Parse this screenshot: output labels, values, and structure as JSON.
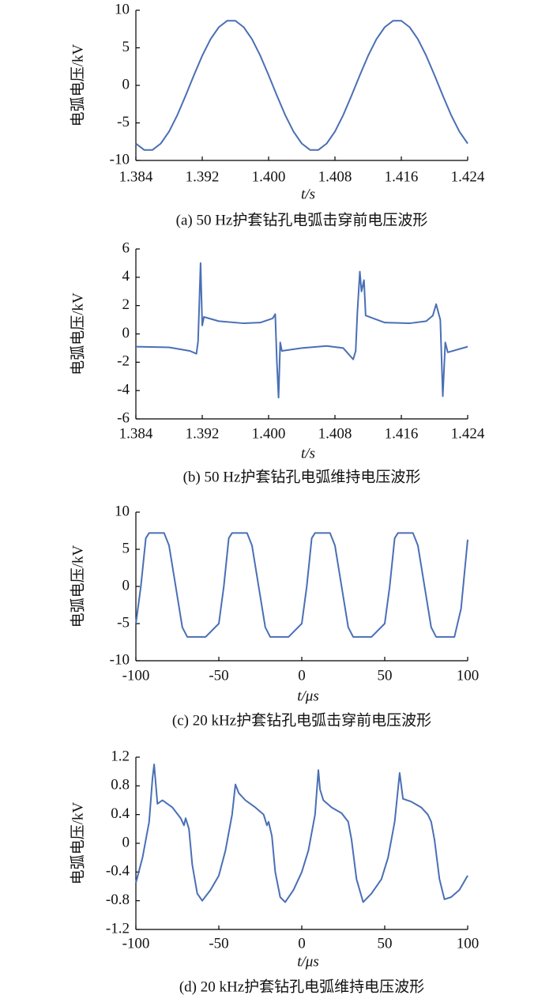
{
  "chart_data": [
    {
      "type": "line",
      "ylabel": "电弧电压/kV",
      "xlabel": "t/s",
      "caption": "(a)  50 Hz护套钻孔电弧击穿前电压波形",
      "color": "#4a6fb5",
      "xlim": [
        1.384,
        1.424
      ],
      "xticks": [
        1.384,
        1.392,
        {
          "value": 1.4,
          "label": "1.400"
        },
        1.408,
        1.416,
        1.424
      ],
      "ylim": [
        -10,
        10
      ],
      "yticks": [
        -10,
        -5,
        0,
        5,
        10
      ],
      "x": [
        1.384,
        1.385,
        1.386,
        1.387,
        1.388,
        1.389,
        1.39,
        1.391,
        1.392,
        1.393,
        1.394,
        1.395,
        1.396,
        1.397,
        1.398,
        1.399,
        1.4,
        1.401,
        1.402,
        1.403,
        1.404,
        1.405,
        1.406,
        1.407,
        1.408,
        1.409,
        1.41,
        1.411,
        1.412,
        1.413,
        1.414,
        1.415,
        1.416,
        1.417,
        1.418,
        1.419,
        1.42,
        1.421,
        1.422,
        1.423,
        1.424
      ],
      "values": [
        -7.75,
        -8.6,
        -8.6,
        -7.75,
        -6.15,
        -3.95,
        -1.36,
        1.36,
        3.95,
        6.15,
        7.75,
        8.6,
        8.6,
        7.75,
        6.15,
        3.95,
        1.36,
        -1.36,
        -3.95,
        -6.15,
        -7.75,
        -8.6,
        -8.6,
        -7.75,
        -6.15,
        -3.95,
        -1.36,
        1.36,
        3.95,
        6.15,
        7.75,
        8.6,
        8.6,
        7.75,
        6.15,
        3.95,
        1.36,
        -1.36,
        -3.95,
        -6.15,
        -7.75
      ]
    },
    {
      "type": "line",
      "ylabel": "电弧电压/kV",
      "xlabel": "t/s",
      "caption": "(b)  50 Hz护套钻孔电弧维持电压波形",
      "color": "#4a6fb5",
      "xlim": [
        1.384,
        1.424
      ],
      "xticks": [
        1.384,
        1.392,
        {
          "value": 1.4,
          "label": "1.400"
        },
        1.408,
        1.416,
        1.424
      ],
      "ylim": [
        -6,
        6
      ],
      "yticks": [
        -6,
        -4,
        -2,
        0,
        2,
        4,
        6
      ],
      "x": [
        1.384,
        1.388,
        1.3905,
        1.3913,
        1.3915,
        1.3918,
        1.392,
        1.3922,
        1.394,
        1.397,
        1.399,
        1.4005,
        1.4008,
        1.401,
        1.4012,
        1.4014,
        1.4016,
        1.404,
        1.407,
        1.409,
        1.4102,
        1.4105,
        1.4107,
        1.411,
        1.4112,
        1.4115,
        1.4117,
        1.414,
        1.417,
        1.419,
        1.4198,
        1.4202,
        1.4207,
        1.421,
        1.4213,
        1.4216,
        1.424
      ],
      "values": [
        -0.9,
        -0.95,
        -1.2,
        -1.4,
        -0.5,
        5.0,
        0.6,
        1.2,
        0.9,
        0.75,
        0.8,
        1.1,
        1.4,
        -2,
        -4.5,
        -0.6,
        -1.2,
        -1.0,
        -0.85,
        -1.0,
        -1.8,
        -1.2,
        1.5,
        4.4,
        3.0,
        3.8,
        1.3,
        0.8,
        0.75,
        0.9,
        1.3,
        2.1,
        1.0,
        -4.4,
        -0.6,
        -1.3,
        -0.9
      ]
    },
    {
      "type": "line",
      "ylabel": "电弧电压/kV",
      "xlabel": "t/μs",
      "caption": "(c)  20 kHz护套钻孔电弧击穿前电压波形",
      "color": "#4a6fb5",
      "xlim": [
        -100,
        100
      ],
      "xticks": [
        -100,
        -50,
        0,
        50,
        100
      ],
      "ylim": [
        -10,
        10
      ],
      "yticks": [
        -10,
        -5,
        0,
        5,
        10
      ],
      "x": [
        -100,
        -97,
        -94,
        -92,
        -83,
        -80,
        -76,
        -72,
        -69,
        -58,
        -50,
        -47,
        -44,
        -42,
        -33,
        -30,
        -26,
        -22,
        -19,
        -8,
        0,
        3,
        6,
        8,
        17,
        20,
        24,
        28,
        31,
        42,
        50,
        53,
        56,
        58,
        67,
        70,
        74,
        78,
        81,
        92,
        96,
        100
      ],
      "values": [
        -5,
        0,
        6.5,
        7.2,
        7.2,
        5.5,
        0,
        -5.5,
        -6.8,
        -6.8,
        -5,
        0,
        6.5,
        7.2,
        7.2,
        5.5,
        0,
        -5.5,
        -6.8,
        -6.8,
        -5,
        0,
        6.5,
        7.2,
        7.2,
        5.5,
        0,
        -5.5,
        -6.8,
        -6.8,
        -5,
        0,
        6.5,
        7.2,
        7.2,
        5.5,
        0,
        -5.5,
        -6.8,
        -6.8,
        -3,
        6.3
      ]
    },
    {
      "type": "line",
      "ylabel": "电弧电压/kV",
      "xlabel": "t/μs",
      "caption": "(d)  20 kHz护套钻孔电弧维持电压波形",
      "color": "#4a6fb5",
      "xlim": [
        -100,
        100
      ],
      "xticks": [
        -100,
        -50,
        0,
        50,
        100
      ],
      "ylim": [
        -1.2,
        1.2
      ],
      "yticks": [
        -1.2,
        -0.8,
        -0.4,
        0,
        0.4,
        0.8,
        1.2
      ],
      "x": [
        -100,
        -96,
        -92,
        -90,
        -89,
        -87,
        -84,
        -78,
        -73,
        -71,
        -70,
        -68,
        -66,
        -63,
        -60,
        -55,
        -50,
        -46,
        -42,
        -40,
        -38,
        -34,
        -28,
        -23,
        -21,
        -20,
        -18,
        -16,
        -13,
        -10,
        -5,
        0,
        4,
        8,
        10,
        11,
        13,
        18,
        24,
        28,
        30,
        33,
        37,
        42,
        48,
        52,
        56,
        59,
        61,
        66,
        72,
        76,
        78,
        80,
        83,
        86,
        90,
        95,
        100
      ],
      "values": [
        -0.55,
        -0.2,
        0.3,
        0.9,
        1.1,
        0.55,
        0.6,
        0.5,
        0.35,
        0.25,
        0.35,
        0.2,
        -0.3,
        -0.7,
        -0.8,
        -0.65,
        -0.45,
        -0.1,
        0.4,
        0.82,
        0.7,
        0.6,
        0.5,
        0.4,
        0.25,
        0.3,
        0.1,
        -0.4,
        -0.75,
        -0.82,
        -0.65,
        -0.4,
        -0.1,
        0.4,
        1.02,
        0.75,
        0.6,
        0.5,
        0.42,
        0.3,
        0.05,
        -0.5,
        -0.82,
        -0.7,
        -0.5,
        -0.2,
        0.3,
        0.98,
        0.62,
        0.58,
        0.5,
        0.4,
        0.3,
        0.05,
        -0.5,
        -0.78,
        -0.75,
        -0.65,
        -0.45
      ]
    }
  ]
}
